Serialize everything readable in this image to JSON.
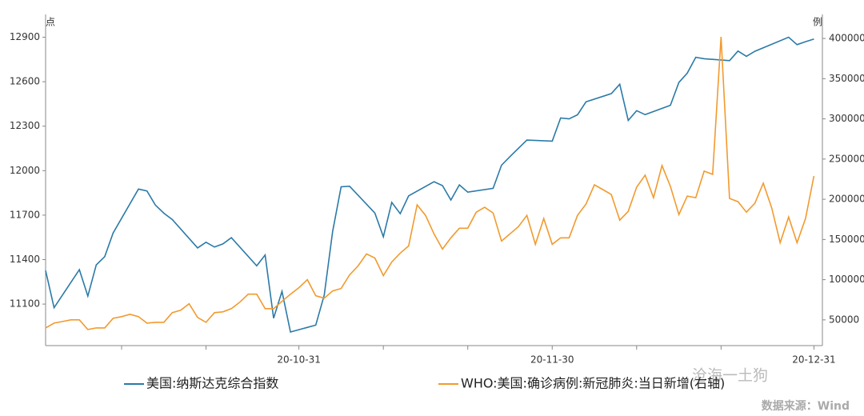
{
  "chart_data": {
    "type": "line",
    "y_unit": "点",
    "y2_unit": "例",
    "xlim": [
      "20-10-01",
      "21-01-01"
    ],
    "xticks": [
      {
        "value": "20-10-10",
        "label": null
      },
      {
        "value": "20-10-20",
        "label": null
      },
      "20-10-31",
      {
        "value": "20-11-10",
        "label": null
      },
      {
        "value": "20-11-20",
        "label": null
      },
      "20-11-30",
      {
        "value": "20-12-10",
        "label": null
      },
      {
        "value": "20-12-20",
        "label": null
      },
      "20-12-31"
    ],
    "ylim": [
      10820,
      13000
    ],
    "yticks": [
      11100,
      11400,
      11700,
      12000,
      12300,
      12600,
      12900
    ],
    "y2lim": [
      18000,
      420000
    ],
    "y2ticks": [
      50000,
      100000,
      150000,
      200000,
      250000,
      300000,
      350000,
      400000
    ],
    "series": [
      {
        "name": "美国:纳斯达克综合指数",
        "color": "#2b7aa8",
        "x": [
          "20-10-01",
          "20-10-02",
          "20-10-05",
          "20-10-06",
          "20-10-07",
          "20-10-08",
          "20-10-09",
          "20-10-12",
          "20-10-13",
          "20-10-14",
          "20-10-15",
          "20-10-16",
          "20-10-19",
          "20-10-20",
          "20-10-21",
          "20-10-22",
          "20-10-23",
          "20-10-26",
          "20-10-27",
          "20-10-28",
          "20-10-29",
          "20-10-30",
          "20-11-02",
          "20-11-03",
          "20-11-04",
          "20-11-05",
          "20-11-06",
          "20-11-09",
          "20-11-10",
          "20-11-11",
          "20-11-12",
          "20-11-13",
          "20-11-16",
          "20-11-17",
          "20-11-18",
          "20-11-19",
          "20-11-20",
          "20-11-23",
          "20-11-24",
          "20-11-25",
          "20-11-27",
          "20-11-30",
          "20-12-01",
          "20-12-02",
          "20-12-03",
          "20-12-04",
          "20-12-07",
          "20-12-08",
          "20-12-09",
          "20-12-10",
          "20-12-11",
          "20-12-14",
          "20-12-15",
          "20-12-16",
          "20-12-17",
          "20-12-18",
          "20-12-21",
          "20-12-22",
          "20-12-23",
          "20-12-24",
          "20-12-28",
          "20-12-29",
          "20-12-30",
          "20-12-31"
        ],
        "values": [
          11326,
          11076,
          11332,
          11154,
          11364,
          11420,
          11580,
          11876,
          11863,
          11768,
          11713,
          11671,
          11479,
          11517,
          11485,
          11506,
          11548,
          11358,
          11431,
          11005,
          11186,
          10912,
          10958,
          11161,
          11590,
          11891,
          11895,
          11714,
          11554,
          11786,
          11710,
          11830,
          11925,
          11899,
          11802,
          11904,
          11855,
          11881,
          12037,
          12095,
          12206,
          12199,
          12355,
          12349,
          12377,
          12464,
          12520,
          12583,
          12339,
          12405,
          12378,
          12441,
          12595,
          12658,
          12765,
          12755,
          12742,
          12807,
          12771,
          12805,
          12900,
          12850,
          12870,
          12888
        ]
      },
      {
        "name": "WHO:美国:确诊病例:新冠肺炎:当日新增(右轴)",
        "color": "#f29a2e",
        "axis": "y2",
        "x": [
          "20-10-01",
          "20-10-02",
          "20-10-03",
          "20-10-04",
          "20-10-05",
          "20-10-06",
          "20-10-07",
          "20-10-08",
          "20-10-09",
          "20-10-10",
          "20-10-11",
          "20-10-12",
          "20-10-13",
          "20-10-14",
          "20-10-15",
          "20-10-16",
          "20-10-17",
          "20-10-18",
          "20-10-19",
          "20-10-20",
          "20-10-21",
          "20-10-22",
          "20-10-23",
          "20-10-24",
          "20-10-25",
          "20-10-26",
          "20-10-27",
          "20-10-28",
          "20-10-29",
          "20-10-30",
          "20-10-31",
          "20-11-01",
          "20-11-02",
          "20-11-03",
          "20-11-04",
          "20-11-05",
          "20-11-06",
          "20-11-07",
          "20-11-08",
          "20-11-09",
          "20-11-10",
          "20-11-11",
          "20-11-12",
          "20-11-13",
          "20-11-14",
          "20-11-15",
          "20-11-16",
          "20-11-17",
          "20-11-18",
          "20-11-19",
          "20-11-20",
          "20-11-21",
          "20-11-22",
          "20-11-23",
          "20-11-24",
          "20-11-25",
          "20-11-26",
          "20-11-27",
          "20-11-28",
          "20-11-29",
          "20-11-30",
          "20-12-01",
          "20-12-02",
          "20-12-03",
          "20-12-04",
          "20-12-05",
          "20-12-06",
          "20-12-07",
          "20-12-08",
          "20-12-09",
          "20-12-10",
          "20-12-11",
          "20-12-12",
          "20-12-13",
          "20-12-14",
          "20-12-15",
          "20-12-16",
          "20-12-17",
          "20-12-18",
          "20-12-19",
          "20-12-20",
          "20-12-21",
          "20-12-22",
          "20-12-23",
          "20-12-24",
          "20-12-25",
          "20-12-26",
          "20-12-27",
          "20-12-28",
          "20-12-29",
          "20-12-30",
          "20-12-31"
        ],
        "values": [
          40000,
          46000,
          48000,
          50000,
          50000,
          38000,
          40000,
          40000,
          52000,
          54000,
          57000,
          54000,
          46000,
          47000,
          47000,
          59000,
          62000,
          70000,
          53000,
          47000,
          59000,
          60000,
          64000,
          72000,
          82000,
          82000,
          64000,
          64000,
          73000,
          82000,
          90000,
          100000,
          80000,
          77000,
          86000,
          89000,
          106000,
          117000,
          132000,
          127000,
          105000,
          122000,
          133000,
          142000,
          193000,
          180000,
          157000,
          138000,
          152000,
          164000,
          164000,
          184000,
          190000,
          183000,
          148000,
          157000,
          166000,
          180000,
          144000,
          176000,
          144000,
          152000,
          152000,
          180000,
          194000,
          218000,
          212000,
          206000,
          174000,
          185000,
          215000,
          230000,
          202000,
          242000,
          216000,
          181000,
          204000,
          202000,
          235000,
          231000,
          402000,
          201000,
          197000,
          184000,
          195000,
          220000,
          189000,
          146000,
          178000,
          146000,
          176000,
          229000
        ]
      }
    ],
    "watermark": "沧海一土狗",
    "source": "数据来源：Wind"
  }
}
